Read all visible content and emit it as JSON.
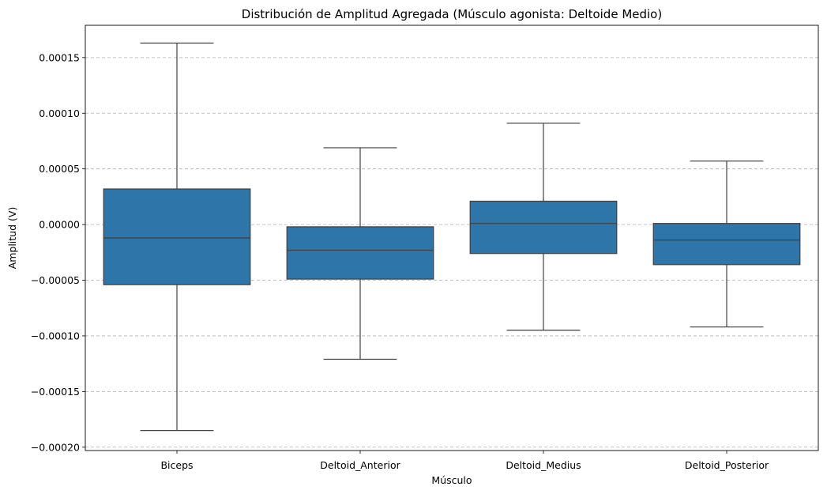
{
  "chart_data": {
    "type": "box",
    "title": "Distribución de Amplitud Agregada (Músculo agonista: Deltoide Medio)",
    "xlabel": "Músculo",
    "ylabel": "Amplitud (V)",
    "ylim": [
      -0.000203,
      0.000179
    ],
    "yticks": [
      -0.0002,
      -0.00015,
      -0.0001,
      -5e-05,
      0.0,
      5e-05,
      0.0001,
      0.00015
    ],
    "ytick_labels": [
      "−0.00020",
      "−0.00015",
      "−0.00010",
      "−0.00005",
      "0.00000",
      "0.00005",
      "0.00010",
      "0.00015"
    ],
    "grid": "y-dashed",
    "box_color": "#2e75aa",
    "categories": [
      "Biceps",
      "Deltoid_Anterior",
      "Deltoid_Medius",
      "Deltoid_Posterior"
    ],
    "boxes": [
      {
        "whisker_low": -0.000185,
        "q1": -5.4e-05,
        "median": -1.2e-05,
        "q3": 3.2e-05,
        "whisker_high": 0.000163
      },
      {
        "whisker_low": -0.000121,
        "q1": -4.9e-05,
        "median": -2.3e-05,
        "q3": -2e-06,
        "whisker_high": 6.9e-05
      },
      {
        "whisker_low": -9.5e-05,
        "q1": -2.6e-05,
        "median": 1e-06,
        "q3": 2.1e-05,
        "whisker_high": 9.1e-05
      },
      {
        "whisker_low": -9.2e-05,
        "q1": -3.6e-05,
        "median": -1.4e-05,
        "q3": 1e-06,
        "whisker_high": 5.7e-05
      }
    ]
  }
}
